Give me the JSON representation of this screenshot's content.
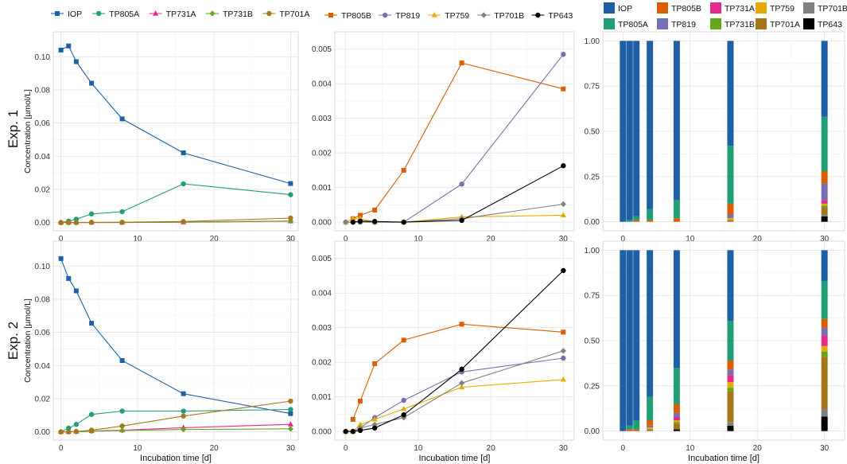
{
  "row_labels": [
    "Exp. 1",
    "Exp. 2"
  ],
  "colors": {
    "IOP": "#1f5fa6",
    "TP805A": "#1f9e77",
    "TP731A": "#e7298a",
    "TP731B": "#66a61e",
    "TP701A": "#a6761d",
    "TP805B": "#d95f02",
    "TP819": "#7570b3",
    "TP759": "#e6ab02",
    "TP701B": "#808080",
    "TP643": "#000000"
  },
  "legends": {
    "left": [
      "IOP",
      "TP805A",
      "TP731A",
      "TP731B",
      "TP701A"
    ],
    "middle": [
      "TP805B",
      "TP819",
      "TP759",
      "TP701B",
      "TP643"
    ],
    "right_row1": [
      "IOP",
      "TP805B",
      "TP731A",
      "TP759",
      "TP701B"
    ],
    "right_row2": [
      "TP805A",
      "TP819",
      "TP731B",
      "TP701A",
      "TP643"
    ]
  },
  "chart_data": [
    {
      "id": "exp1-left",
      "type": "line",
      "ylabel": "Concentration [µmol/L]",
      "xlabel": "",
      "xlim": [
        -1,
        31
      ],
      "ylim": [
        -0.005,
        0.115
      ],
      "xticks": [
        0,
        10,
        20,
        30
      ],
      "yticks": [
        0,
        0.02,
        0.04,
        0.06,
        0.08,
        0.1
      ],
      "ytick_labels": [
        "0.00",
        "0.02",
        "0.04",
        "0.06",
        "0.08",
        "0.10"
      ],
      "series": [
        {
          "name": "IOP",
          "x": [
            0,
            1,
            2,
            4,
            8,
            16,
            30
          ],
          "y": [
            0.104,
            0.1065,
            0.097,
            0.084,
            0.0625,
            0.042,
            0.0235
          ]
        },
        {
          "name": "TP805A",
          "x": [
            0,
            1,
            2,
            4,
            8,
            16,
            30
          ],
          "y": [
            0,
            0.0008,
            0.002,
            0.0052,
            0.0065,
            0.0233,
            0.0168
          ]
        },
        {
          "name": "TP731A",
          "x": [
            0,
            1,
            2,
            4,
            8,
            16,
            30
          ],
          "y": [
            0,
            0,
            0,
            0,
            0,
            0.0002,
            0.0008
          ]
        },
        {
          "name": "TP731B",
          "x": [
            0,
            1,
            2,
            4,
            8,
            16,
            30
          ],
          "y": [
            0,
            0,
            0,
            0,
            0,
            0.0003,
            0.0009
          ]
        },
        {
          "name": "TP701A",
          "x": [
            0,
            1,
            2,
            4,
            8,
            16,
            30
          ],
          "y": [
            0,
            0,
            0,
            0.0001,
            0.0002,
            0.0006,
            0.0027
          ]
        }
      ]
    },
    {
      "id": "exp1-middle",
      "type": "line",
      "ylabel": "",
      "xlabel": "",
      "xlim": [
        -1.5,
        31.5
      ],
      "ylim": [
        -0.00025,
        0.0055
      ],
      "xticks": [
        0,
        10,
        20,
        30
      ],
      "yticks": [
        0,
        0.001,
        0.002,
        0.003,
        0.004,
        0.005
      ],
      "ytick_labels": [
        "0.000",
        "0.001",
        "0.002",
        "0.003",
        "0.004",
        "0.005"
      ],
      "series": [
        {
          "name": "TP805B",
          "x": [
            1,
            2,
            4,
            8,
            16,
            30
          ],
          "y": [
            0.0001,
            0.0002,
            0.00035,
            0.0015,
            0.0046,
            0.00385
          ]
        },
        {
          "name": "TP819",
          "x": [
            0,
            1,
            2,
            4,
            8,
            16,
            30
          ],
          "y": [
            0,
            0,
            0,
            0,
            0,
            0.0011,
            0.00485
          ]
        },
        {
          "name": "TP759",
          "x": [
            0,
            1,
            2,
            4,
            8,
            16,
            30
          ],
          "y": [
            0,
            0.0001,
            0.0001,
            0,
            0,
            0.00015,
            0.0002
          ]
        },
        {
          "name": "TP701B",
          "x": [
            0,
            1,
            2,
            4,
            8,
            16,
            30
          ],
          "y": [
            0,
            0,
            0,
            0,
            0,
            0.0001,
            0.00052
          ]
        },
        {
          "name": "TP643",
          "x": [
            1,
            2,
            4,
            8,
            16,
            30
          ],
          "y": [
            0,
            3e-05,
            2e-05,
            0,
            5e-05,
            0.00163
          ]
        }
      ]
    },
    {
      "id": "exp1-right",
      "type": "bar",
      "stacked": true,
      "ylabel": "",
      "xlabel": "",
      "xlim": [
        -3,
        33
      ],
      "ylim": [
        -0.05,
        1.05
      ],
      "xticks": [
        0,
        10,
        20,
        30
      ],
      "yticks": [
        0,
        0.25,
        0.5,
        0.75,
        1.0
      ],
      "ytick_labels": [
        "0.00",
        "0.25",
        "0.50",
        "0.75",
        "1.00"
      ],
      "x": [
        0,
        1,
        2,
        4,
        8,
        16,
        30
      ],
      "series": [
        {
          "name": "TP643",
          "values": [
            0,
            0,
            0,
            0,
            0,
            0,
            0.03
          ]
        },
        {
          "name": "TP701B",
          "values": [
            0,
            0,
            0,
            0,
            0,
            0,
            0.01
          ]
        },
        {
          "name": "TP701A",
          "values": [
            0,
            0,
            0,
            0,
            0,
            0.01,
            0.04
          ]
        },
        {
          "name": "TP731B",
          "values": [
            0,
            0,
            0,
            0,
            0,
            0,
            0.01
          ]
        },
        {
          "name": "TP759",
          "values": [
            0,
            0,
            0,
            0,
            0,
            0.01,
            0.01
          ]
        },
        {
          "name": "TP731A",
          "values": [
            0,
            0,
            0,
            0,
            0,
            0,
            0.02
          ]
        },
        {
          "name": "TP819",
          "values": [
            0,
            0,
            0,
            0,
            0,
            0.02,
            0.09
          ]
        },
        {
          "name": "TP805B",
          "values": [
            0,
            0,
            0.01,
            0.01,
            0.02,
            0.06,
            0.07
          ]
        },
        {
          "name": "TP805A",
          "values": [
            0,
            0.01,
            0.02,
            0.06,
            0.1,
            0.32,
            0.3
          ]
        },
        {
          "name": "IOP",
          "values": [
            1.0,
            0.99,
            0.97,
            0.93,
            0.88,
            0.58,
            0.42
          ]
        }
      ]
    },
    {
      "id": "exp2-left",
      "type": "line",
      "ylabel": "Concentration [µmol/L]",
      "xlabel": "Incubation time [d]",
      "xlim": [
        -1,
        31
      ],
      "ylim": [
        -0.005,
        0.115
      ],
      "xticks": [
        0,
        10,
        20,
        30
      ],
      "yticks": [
        0,
        0.02,
        0.04,
        0.06,
        0.08,
        0.1
      ],
      "ytick_labels": [
        "0.00",
        "0.02",
        "0.04",
        "0.06",
        "0.08",
        "0.10"
      ],
      "series": [
        {
          "name": "IOP",
          "x": [
            0,
            1,
            2,
            4,
            8,
            16,
            30
          ],
          "y": [
            0.1045,
            0.0925,
            0.085,
            0.0655,
            0.043,
            0.023,
            0.011
          ]
        },
        {
          "name": "TP805A",
          "x": [
            0,
            1,
            2,
            4,
            8,
            16,
            30
          ],
          "y": [
            0,
            0.0022,
            0.0045,
            0.0105,
            0.0125,
            0.0125,
            0.0135
          ]
        },
        {
          "name": "TP731A",
          "x": [
            0,
            1,
            2,
            4,
            8,
            16,
            30
          ],
          "y": [
            0,
            0,
            0.0002,
            0.0005,
            0.001,
            0.0025,
            0.0045
          ]
        },
        {
          "name": "TP731B",
          "x": [
            0,
            1,
            2,
            4,
            8,
            16,
            30
          ],
          "y": [
            0,
            0,
            0,
            0.0004,
            0.0008,
            0.0014,
            0.0018
          ]
        },
        {
          "name": "TP701A",
          "x": [
            0,
            1,
            2,
            4,
            8,
            16,
            30
          ],
          "y": [
            0,
            0,
            0.0002,
            0.001,
            0.0035,
            0.0095,
            0.0185
          ]
        }
      ]
    },
    {
      "id": "exp2-middle",
      "type": "line",
      "ylabel": "",
      "xlabel": "Incubation time [d]",
      "xlim": [
        -1.5,
        31.5
      ],
      "ylim": [
        -0.00025,
        0.0055
      ],
      "xticks": [
        0,
        10,
        20,
        30
      ],
      "yticks": [
        0,
        0.001,
        0.002,
        0.003,
        0.004,
        0.005
      ],
      "ytick_labels": [
        "0.000",
        "0.001",
        "0.002",
        "0.003",
        "0.004",
        "0.005"
      ],
      "series": [
        {
          "name": "TP805B",
          "x": [
            1,
            2,
            4,
            8,
            16,
            30
          ],
          "y": [
            0.00035,
            0.00088,
            0.00196,
            0.00264,
            0.0031,
            0.00287
          ]
        },
        {
          "name": "TP819",
          "x": [
            0,
            1,
            2,
            4,
            8,
            16,
            30
          ],
          "y": [
            0,
            0,
            0.0001,
            0.0004,
            0.0009,
            0.00172,
            0.00212
          ]
        },
        {
          "name": "TP759",
          "x": [
            0,
            1,
            2,
            4,
            8,
            16,
            30
          ],
          "y": [
            0,
            0,
            0.0002,
            0.00035,
            0.00065,
            0.00128,
            0.0015
          ]
        },
        {
          "name": "TP701B",
          "x": [
            0,
            1,
            2,
            4,
            8,
            16,
            30
          ],
          "y": [
            0,
            0,
            0.0001,
            0.0002,
            0.0004,
            0.0014,
            0.00233
          ]
        },
        {
          "name": "TP643",
          "x": [
            0,
            1,
            2,
            4,
            8,
            16,
            30
          ],
          "y": [
            0,
            0,
            3e-05,
            0.0001,
            0.00048,
            0.0018,
            0.00465
          ]
        }
      ]
    },
    {
      "id": "exp2-right",
      "type": "bar",
      "stacked": true,
      "ylabel": "",
      "xlabel": "Incubation time [d]",
      "xlim": [
        -3,
        33
      ],
      "ylim": [
        -0.05,
        1.05
      ],
      "xticks": [
        0,
        10,
        20,
        30
      ],
      "yticks": [
        0,
        0.25,
        0.5,
        0.75,
        1.0
      ],
      "ytick_labels": [
        "0.00",
        "0.25",
        "0.50",
        "0.75",
        "1.00"
      ],
      "x": [
        0,
        1,
        2,
        4,
        8,
        16,
        30
      ],
      "series": [
        {
          "name": "TP643",
          "values": [
            0,
            0,
            0,
            0,
            0.01,
            0.03,
            0.08
          ]
        },
        {
          "name": "TP701B",
          "values": [
            0,
            0,
            0,
            0,
            0,
            0.02,
            0.04
          ]
        },
        {
          "name": "TP701A",
          "values": [
            0,
            0,
            0,
            0.01,
            0.03,
            0.17,
            0.29
          ]
        },
        {
          "name": "TP731B",
          "values": [
            0,
            0,
            0,
            0,
            0.01,
            0.02,
            0.03
          ]
        },
        {
          "name": "TP759",
          "values": [
            0,
            0,
            0,
            0.01,
            0.01,
            0.03,
            0.03
          ]
        },
        {
          "name": "TP731A",
          "values": [
            0,
            0,
            0,
            0,
            0.02,
            0.04,
            0.06
          ]
        },
        {
          "name": "TP819",
          "values": [
            0,
            0,
            0,
            0.01,
            0.02,
            0.03,
            0.04
          ]
        },
        {
          "name": "TP805B",
          "values": [
            0,
            0.01,
            0.01,
            0.03,
            0.05,
            0.05,
            0.05
          ]
        },
        {
          "name": "TP805A",
          "values": [
            0,
            0.02,
            0.05,
            0.13,
            0.2,
            0.22,
            0.21
          ]
        },
        {
          "name": "IOP",
          "values": [
            1.0,
            0.97,
            0.94,
            0.81,
            0.65,
            0.39,
            0.17
          ]
        }
      ]
    }
  ]
}
